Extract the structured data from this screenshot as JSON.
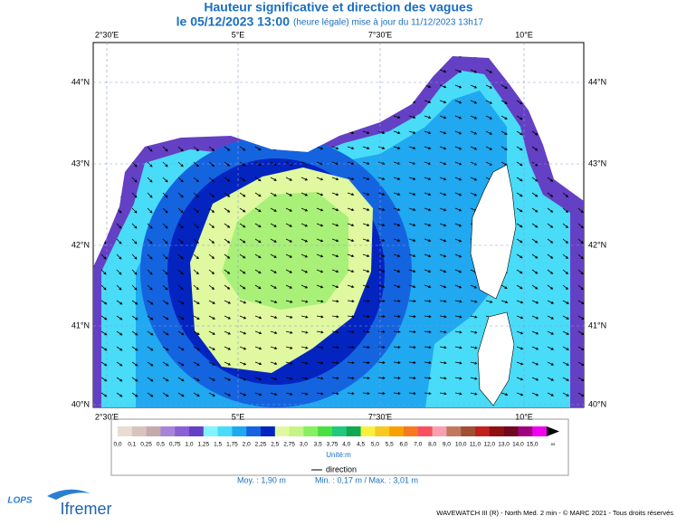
{
  "header": {
    "title": "Hauteur significative et direction des vagues",
    "date": "le 05/12/2023 13:00",
    "note": "(heure légale) mise à jour du 11/12/2023 13h17"
  },
  "map": {
    "longitudes": [
      "2°30'E",
      "5°E",
      "7°30'E",
      "10°E"
    ],
    "latitudes": [
      "44°N",
      "43°N",
      "42°N",
      "41°N",
      "40°N"
    ]
  },
  "legend": {
    "labels": [
      "0,0",
      "0,1",
      "0,25",
      "0,5",
      "0,75",
      "1,0",
      "1,25",
      "1,5",
      "1,75",
      "2,0",
      "2,25",
      "2,5",
      "2,75",
      "3,0",
      "3,5",
      "3,75",
      "4,0",
      "4,5",
      "5,0",
      "5,5",
      "6,0",
      "7,0",
      "8,0",
      "9,0",
      "10,0",
      "11,0",
      "12,0",
      "13,0",
      "14,0",
      "15,0",
      "∞"
    ],
    "colors": [
      "#e8dcd4",
      "#d8c4bc",
      "#c4aaa8",
      "#a884d8",
      "#8a60d4",
      "#6440c4",
      "#80f4ff",
      "#48dcf8",
      "#20a8f0",
      "#1464e0",
      "#0424c0",
      "#e0f8a0",
      "#c4f484",
      "#88f060",
      "#48e040",
      "#20c880",
      "#10a850",
      "#f8f040",
      "#f8c820",
      "#f8a000",
      "#f87820",
      "#f85060",
      "#f8a0b0",
      "#c07860",
      "#a05030",
      "#c02020",
      "#901010",
      "#700820",
      "#a00080",
      "#f000f0"
    ],
    "unit": "Unité:m",
    "direction": "direction"
  },
  "stats": {
    "mean": "Moy. : 1,90 m",
    "minmax": "Min. : 0,17 m / Max. : 3,01 m"
  },
  "footer": {
    "credits": "WAVEWATCH III (R) - North Med. 2 min - © MARC 2021 - Tous droits réservés",
    "logo1": "LOPS",
    "logo2": "Ifremer"
  }
}
